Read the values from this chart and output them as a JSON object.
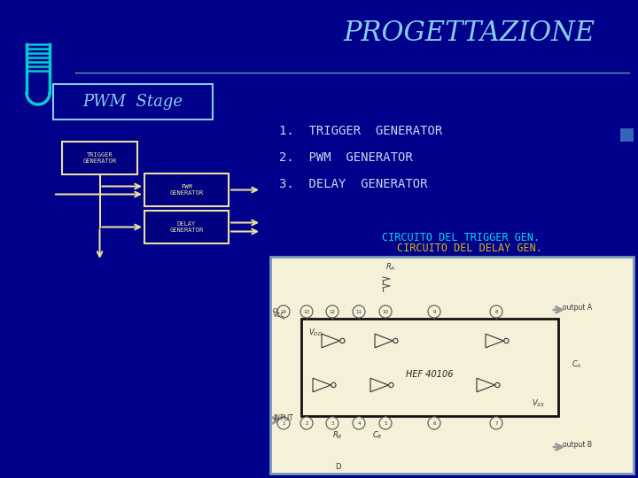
{
  "title": "PROGETTAZIONE",
  "bg_color": "#00008B",
  "title_color": "#87CEEB",
  "pwm_stage_label": "PWM  Stage",
  "items": [
    "1.  TRIGGER  GENERATOR",
    "2.  PWM  GENERATOR",
    "3.  DELAY  GENERATOR"
  ],
  "items_color": "#C8D8F0",
  "block_colors": {
    "box_bg": "#000080",
    "box_border": "#E8E0A0",
    "box_text": "#E8E0A0",
    "arrow": "#E8E0A0"
  },
  "circuit_label_top": "CIRCUITO DEL TRIGGER GEN.",
  "circuit_label_bot": "CIRCUITO DEL DELAY GEN.",
  "circuit_label_color_top": "#00FFFF",
  "circuit_label_color_bot": "#FFD700",
  "logo_color": "#00CED1",
  "line_color": "#6699AA",
  "circuit_bg": "#F5F0D8",
  "circuit_border": "#7799BB"
}
